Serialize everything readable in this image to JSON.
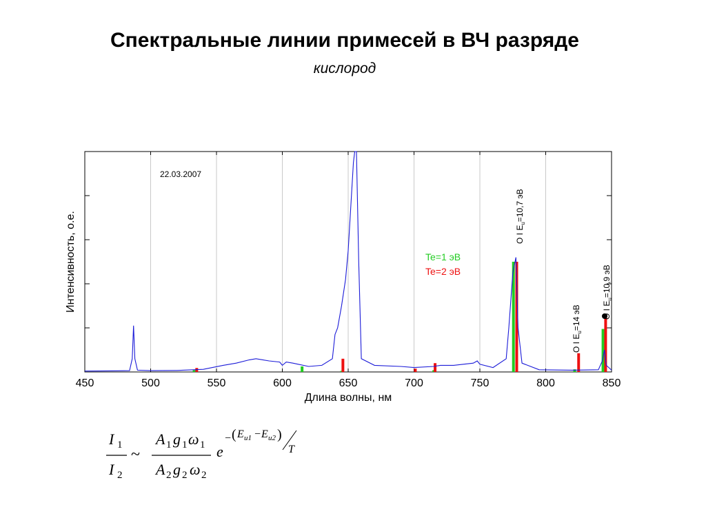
{
  "slide": {
    "title": "Спектральные линии примесей в ВЧ разряде",
    "subtitle": "кислород"
  },
  "chart_data": {
    "type": "line",
    "xlabel": "Длина волны, нм",
    "ylabel": "Интенсивность, о.е.",
    "xlim": [
      450,
      850
    ],
    "ylim": [
      0,
      1
    ],
    "x_ticks": [
      "450",
      "500",
      "550",
      "600",
      "650",
      "700",
      "750",
      "800",
      "850"
    ],
    "grid": "vertical",
    "date_label": "22.03.2007",
    "colors": {
      "spectrum": "#1a1ad8",
      "te1": "#22cc22",
      "te2": "#ee1111"
    },
    "spectrum_points": [
      [
        450,
        0.004
      ],
      [
        470,
        0.005
      ],
      [
        484,
        0.006
      ],
      [
        486,
        0.06
      ],
      [
        487,
        0.21
      ],
      [
        488,
        0.06
      ],
      [
        490,
        0.008
      ],
      [
        500,
        0.006
      ],
      [
        520,
        0.007
      ],
      [
        540,
        0.012
      ],
      [
        555,
        0.03
      ],
      [
        565,
        0.04
      ],
      [
        575,
        0.055
      ],
      [
        580,
        0.06
      ],
      [
        590,
        0.05
      ],
      [
        598,
        0.045
      ],
      [
        600,
        0.03
      ],
      [
        603,
        0.045
      ],
      [
        608,
        0.04
      ],
      [
        612,
        0.035
      ],
      [
        620,
        0.025
      ],
      [
        630,
        0.03
      ],
      [
        638,
        0.06
      ],
      [
        640,
        0.17
      ],
      [
        642,
        0.2
      ],
      [
        645,
        0.3
      ],
      [
        648,
        0.42
      ],
      [
        650,
        0.55
      ],
      [
        652,
        0.75
      ],
      [
        654,
        0.95
      ],
      [
        655,
        1.0
      ],
      [
        656.3,
        1.0
      ],
      [
        658,
        0.5
      ],
      [
        660,
        0.06
      ],
      [
        670,
        0.03
      ],
      [
        690,
        0.025
      ],
      [
        700,
        0.02
      ],
      [
        715,
        0.025
      ],
      [
        720,
        0.03
      ],
      [
        730,
        0.03
      ],
      [
        745,
        0.04
      ],
      [
        748,
        0.05
      ],
      [
        750,
        0.035
      ],
      [
        760,
        0.02
      ],
      [
        770,
        0.06
      ],
      [
        772,
        0.2
      ],
      [
        775,
        0.45
      ],
      [
        777.4,
        0.52
      ],
      [
        779,
        0.2
      ],
      [
        782,
        0.04
      ],
      [
        795,
        0.01
      ],
      [
        820,
        0.008
      ],
      [
        840,
        0.01
      ],
      [
        843,
        0.05
      ],
      [
        844.6,
        0.1
      ],
      [
        846,
        0.03
      ],
      [
        850,
        0.008
      ]
    ],
    "series": [
      {
        "name": "Te=1 эВ",
        "bars": [
          [
            533,
            0.008
          ],
          [
            615,
            0.025
          ],
          [
            645,
            0.005
          ],
          [
            715,
            0.008
          ],
          [
            775.5,
            0.5
          ],
          [
            822,
            0.012
          ],
          [
            843.5,
            0.195
          ]
        ]
      },
      {
        "name": "Te=2 эВ",
        "bars": [
          [
            535,
            0.018
          ],
          [
            646,
            0.06
          ],
          [
            701,
            0.015
          ],
          [
            716,
            0.04
          ],
          [
            778,
            0.5
          ],
          [
            825,
            0.085
          ],
          [
            845.5,
            0.26
          ]
        ]
      }
    ],
    "annotations": [
      {
        "element": "O I",
        "energy": "10,7 эВ",
        "x": 777
      },
      {
        "element": "O I",
        "energy": "14 эВ",
        "x": 825
      },
      {
        "element": "O I",
        "energy": "10,9 эВ",
        "x": 845
      }
    ]
  },
  "formula": {
    "I": "I",
    "one": "1",
    "two": "2",
    "tilde": "~",
    "A": "A",
    "g": "g",
    "omega": "ω",
    "e": "e",
    "minus": "−",
    "Eu": "E",
    "u": "u",
    "u1": "u1",
    "u2": "u2",
    "T": "T"
  }
}
